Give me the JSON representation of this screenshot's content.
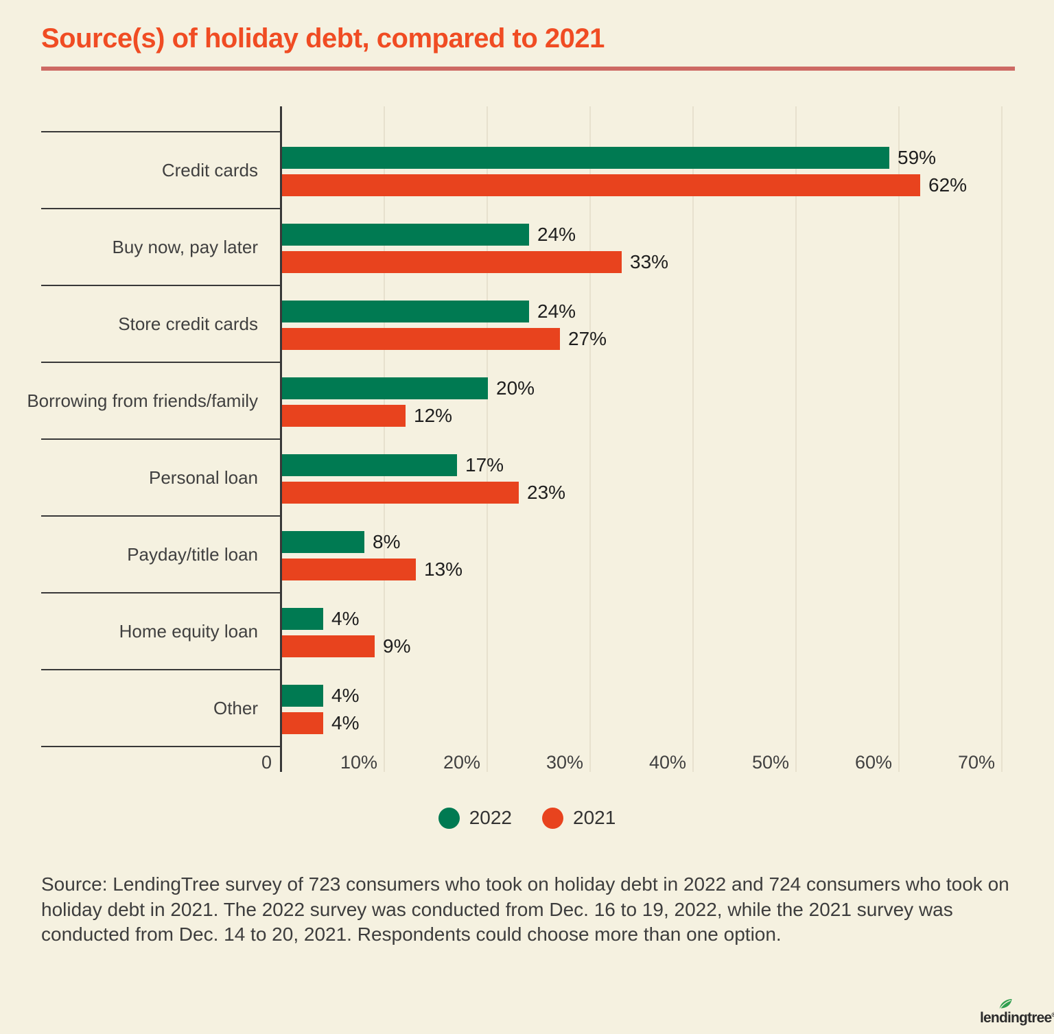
{
  "title": "Source(s) of holiday debt, compared to 2021",
  "chart_data": {
    "type": "bar",
    "orientation": "horizontal",
    "title": "Source(s) of holiday debt, compared to 2021",
    "categories": [
      "Credit cards",
      "Buy now, pay later",
      "Store credit cards",
      "Borrowing from friends/family",
      "Personal loan",
      "Payday/title loan",
      "Home equity loan",
      "Other"
    ],
    "series": [
      {
        "name": "2022",
        "color": "#007a52",
        "values": [
          59,
          24,
          24,
          20,
          17,
          8,
          4,
          4
        ]
      },
      {
        "name": "2021",
        "color": "#e8431e",
        "values": [
          62,
          33,
          27,
          12,
          23,
          13,
          9,
          4
        ]
      }
    ],
    "value_suffix": "%",
    "xlabel": "",
    "ylabel": "",
    "xlim": [
      0,
      70
    ],
    "x_ticks": [
      "0",
      "10%",
      "20%",
      "30%",
      "40%",
      "50%",
      "60%",
      "70%"
    ],
    "grid": "vertical-only",
    "legend_position": "bottom",
    "data_labels": true
  },
  "legend": {
    "items": [
      {
        "label": "2022",
        "color": "#007a52"
      },
      {
        "label": "2021",
        "color": "#e8431e"
      }
    ]
  },
  "source_note": "Source: LendingTree survey of 723 consumers who took on holiday debt in 2022 and 724 consumers who took on holiday debt in 2021. The 2022 survey was conducted from Dec. 16 to 19, 2022, while the 2021 survey was conducted from Dec. 14 to 20, 2021. Respondents could choose more than one option.",
  "logo": {
    "text": "lendingtree",
    "reg_mark": "®",
    "leaf_color": "#2f9e4f"
  },
  "colors": {
    "background": "#f5f1e0",
    "title": "#f04c23",
    "title_rule": "#cd6a64",
    "axis": "#383838",
    "gridline": "#e7e1ce",
    "label_text": "#404040",
    "value_text": "#1e1e1e",
    "bar_2022": "#007a52",
    "bar_2021": "#e8431e"
  }
}
